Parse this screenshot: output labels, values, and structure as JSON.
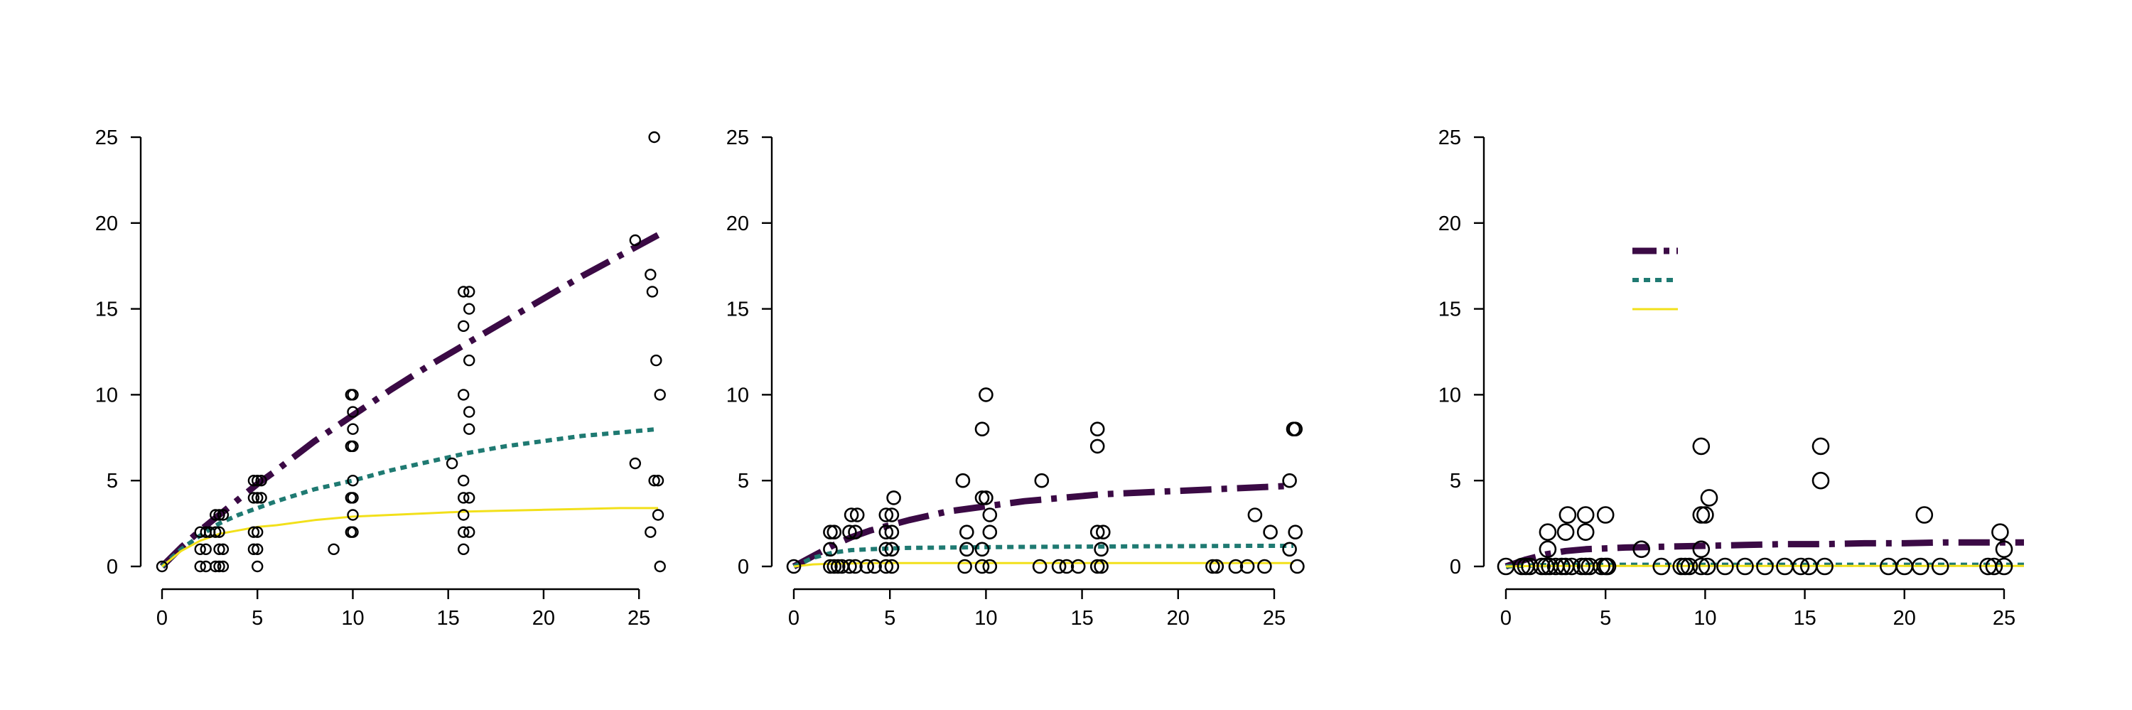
{
  "colors": {
    "dark": "#3b0a45",
    "teal": "#1f7a72",
    "yellow": "#f2e01a",
    "axis": "#000000"
  },
  "chart_data": [
    {
      "type": "scatter",
      "title": "",
      "xlabel": "",
      "ylabel": "",
      "xlim": [
        0,
        26
      ],
      "ylim": [
        0,
        25
      ],
      "xticks": [
        0,
        5,
        10,
        15,
        20,
        25
      ],
      "yticks": [
        0,
        5,
        10,
        15,
        20,
        25
      ],
      "grid": false,
      "points": [
        [
          0,
          0
        ],
        [
          2,
          0
        ],
        [
          2,
          1
        ],
        [
          2,
          2
        ],
        [
          2.3,
          0
        ],
        [
          2.3,
          1
        ],
        [
          2.3,
          2
        ],
        [
          2.5,
          2
        ],
        [
          2.8,
          0
        ],
        [
          2.8,
          2
        ],
        [
          2.8,
          3
        ],
        [
          3,
          0
        ],
        [
          3,
          1
        ],
        [
          3,
          2
        ],
        [
          3,
          3
        ],
        [
          3.2,
          0
        ],
        [
          3.2,
          1
        ],
        [
          3.2,
          3
        ],
        [
          5,
          0
        ],
        [
          5,
          1
        ],
        [
          5,
          2
        ],
        [
          5,
          4
        ],
        [
          5,
          5
        ],
        [
          4.8,
          1
        ],
        [
          4.8,
          2
        ],
        [
          4.8,
          4
        ],
        [
          4.8,
          5
        ],
        [
          5.2,
          4
        ],
        [
          5.2,
          5
        ],
        [
          9,
          1
        ],
        [
          10,
          2
        ],
        [
          10,
          3
        ],
        [
          10,
          4
        ],
        [
          10,
          5
        ],
        [
          10,
          7
        ],
        [
          10,
          8
        ],
        [
          10,
          9
        ],
        [
          10,
          10
        ],
        [
          9.9,
          2
        ],
        [
          9.9,
          4
        ],
        [
          9.9,
          7
        ],
        [
          9.9,
          10
        ],
        [
          15.2,
          6
        ],
        [
          15.8,
          1
        ],
        [
          15.8,
          2
        ],
        [
          15.8,
          3
        ],
        [
          15.8,
          4
        ],
        [
          15.8,
          5
        ],
        [
          15.8,
          10
        ],
        [
          15.8,
          14
        ],
        [
          15.8,
          16
        ],
        [
          16.1,
          2
        ],
        [
          16.1,
          4
        ],
        [
          16.1,
          8
        ],
        [
          16.1,
          9
        ],
        [
          16.1,
          12
        ],
        [
          16.1,
          15
        ],
        [
          16.1,
          16
        ],
        [
          24.8,
          6
        ],
        [
          24.8,
          19
        ],
        [
          25.6,
          2
        ],
        [
          25.6,
          17
        ],
        [
          25.7,
          16
        ],
        [
          25.8,
          25
        ],
        [
          25.8,
          5
        ],
        [
          25.9,
          12
        ],
        [
          26,
          3
        ],
        [
          26,
          5
        ],
        [
          26.1,
          0
        ],
        [
          26.1,
          10
        ]
      ],
      "series": [
        {
          "style": "dashdot",
          "color": "dark",
          "x": [
            0,
            1,
            2,
            3,
            4,
            5,
            6,
            8,
            10,
            12,
            14,
            16,
            18,
            20,
            22,
            24,
            26
          ],
          "y": [
            0,
            1.1,
            2.1,
            3.0,
            3.9,
            4.8,
            5.6,
            7.3,
            8.8,
            10.3,
            11.7,
            13.0,
            14.3,
            15.6,
            16.9,
            18.1,
            19.3
          ]
        },
        {
          "style": "dotted",
          "color": "teal",
          "x": [
            0,
            1,
            2,
            3,
            4,
            5,
            6,
            8,
            10,
            12,
            14,
            16,
            18,
            20,
            22,
            24,
            26
          ],
          "y": [
            0,
            1.0,
            1.8,
            2.5,
            3.0,
            3.4,
            3.8,
            4.5,
            5.0,
            5.6,
            6.1,
            6.6,
            7.0,
            7.3,
            7.6,
            7.8,
            8.0
          ]
        },
        {
          "style": "solid",
          "color": "yellow",
          "x": [
            0,
            1,
            2,
            3,
            4,
            5,
            6,
            8,
            10,
            12,
            14,
            16,
            18,
            20,
            22,
            24,
            26
          ],
          "y": [
            0,
            0.9,
            1.5,
            1.9,
            2.1,
            2.3,
            2.4,
            2.7,
            2.9,
            3.0,
            3.1,
            3.2,
            3.25,
            3.3,
            3.35,
            3.4,
            3.4
          ]
        }
      ]
    },
    {
      "type": "scatter",
      "title": "",
      "xlabel": "",
      "ylabel": "",
      "xlim": [
        0,
        26
      ],
      "ylim": [
        0,
        25
      ],
      "xticks": [
        0,
        5,
        10,
        15,
        20,
        25
      ],
      "yticks": [
        0,
        5,
        10,
        15,
        20,
        25
      ],
      "grid": false,
      "points": [
        [
          0,
          0
        ],
        [
          1.9,
          0
        ],
        [
          1.9,
          1
        ],
        [
          1.9,
          2
        ],
        [
          2.1,
          0
        ],
        [
          2.1,
          2
        ],
        [
          2.3,
          0
        ],
        [
          2.5,
          0
        ],
        [
          2.9,
          0
        ],
        [
          2.9,
          2
        ],
        [
          3,
          3
        ],
        [
          3.2,
          0
        ],
        [
          3.2,
          2
        ],
        [
          3.3,
          3
        ],
        [
          3.8,
          0
        ],
        [
          4.2,
          0
        ],
        [
          4.8,
          0
        ],
        [
          4.8,
          1
        ],
        [
          4.8,
          2
        ],
        [
          4.8,
          3
        ],
        [
          5.1,
          0
        ],
        [
          5.1,
          1
        ],
        [
          5.1,
          2
        ],
        [
          5.1,
          3
        ],
        [
          5.2,
          4
        ],
        [
          8.8,
          5
        ],
        [
          8.9,
          0
        ],
        [
          9,
          1
        ],
        [
          9,
          2
        ],
        [
          9.8,
          0
        ],
        [
          9.8,
          1
        ],
        [
          9.8,
          4
        ],
        [
          9.8,
          8
        ],
        [
          10,
          10
        ],
        [
          10,
          4
        ],
        [
          10.2,
          0
        ],
        [
          10.2,
          2
        ],
        [
          10.2,
          3
        ],
        [
          12.8,
          0
        ],
        [
          12.9,
          5
        ],
        [
          13.8,
          0
        ],
        [
          14.2,
          0
        ],
        [
          14.8,
          0
        ],
        [
          15.8,
          0
        ],
        [
          15.8,
          2
        ],
        [
          15.8,
          7
        ],
        [
          15.8,
          8
        ],
        [
          16,
          0
        ],
        [
          16,
          1
        ],
        [
          16.1,
          2
        ],
        [
          21.8,
          0
        ],
        [
          22,
          0
        ],
        [
          23,
          0
        ],
        [
          23.6,
          0
        ],
        [
          24,
          3
        ],
        [
          24.5,
          0
        ],
        [
          24.8,
          2
        ],
        [
          25.8,
          1
        ],
        [
          25.8,
          5
        ],
        [
          26,
          8
        ],
        [
          26.1,
          8
        ],
        [
          26.1,
          2
        ],
        [
          26.2,
          0
        ]
      ],
      "series": [
        {
          "style": "dashdot",
          "color": "dark",
          "x": [
            0,
            1,
            2,
            3,
            4,
            5,
            6,
            8,
            10,
            12,
            14,
            16,
            18,
            20,
            22,
            24,
            26
          ],
          "y": [
            0,
            0.6,
            1.2,
            1.7,
            2.1,
            2.4,
            2.7,
            3.2,
            3.5,
            3.8,
            4.0,
            4.2,
            4.3,
            4.4,
            4.5,
            4.6,
            4.7
          ]
        },
        {
          "style": "dotted",
          "color": "teal",
          "x": [
            0,
            1,
            2,
            3,
            4,
            5,
            6,
            8,
            10,
            12,
            14,
            16,
            18,
            20,
            22,
            24,
            26
          ],
          "y": [
            0,
            0.5,
            0.8,
            0.95,
            1.0,
            1.05,
            1.08,
            1.1,
            1.12,
            1.14,
            1.15,
            1.16,
            1.17,
            1.18,
            1.19,
            1.2,
            1.2
          ]
        },
        {
          "style": "solid",
          "color": "yellow",
          "x": [
            0,
            1,
            2,
            3,
            4,
            5,
            6,
            8,
            10,
            12,
            14,
            16,
            18,
            20,
            22,
            24,
            26
          ],
          "y": [
            0,
            0.12,
            0.16,
            0.18,
            0.19,
            0.2,
            0.2,
            0.2,
            0.2,
            0.2,
            0.2,
            0.2,
            0.2,
            0.2,
            0.2,
            0.2,
            0.2
          ]
        }
      ]
    },
    {
      "type": "scatter",
      "title": "",
      "xlabel": "",
      "ylabel": "",
      "xlim": [
        0,
        26
      ],
      "ylim": [
        0,
        25
      ],
      "xticks": [
        0,
        5,
        10,
        15,
        20,
        25
      ],
      "yticks": [
        0,
        5,
        10,
        15,
        20,
        25
      ],
      "grid": false,
      "legend": {
        "placement": "top-left",
        "entries": [
          {
            "style": "dashdot",
            "color": "dark"
          },
          {
            "style": "dotted",
            "color": "teal"
          },
          {
            "style": "solid",
            "color": "yellow"
          }
        ]
      },
      "points": [
        [
          0,
          0
        ],
        [
          0.8,
          0
        ],
        [
          1,
          0
        ],
        [
          1.2,
          0
        ],
        [
          1.8,
          0
        ],
        [
          2,
          0
        ],
        [
          2.1,
          1
        ],
        [
          2.1,
          2
        ],
        [
          2.2,
          0
        ],
        [
          2.5,
          0
        ],
        [
          2.8,
          0
        ],
        [
          3,
          0
        ],
        [
          3,
          2
        ],
        [
          3.1,
          3
        ],
        [
          3.3,
          0
        ],
        [
          3.8,
          0
        ],
        [
          4,
          0
        ],
        [
          4,
          2
        ],
        [
          4,
          3
        ],
        [
          4.2,
          0
        ],
        [
          4.8,
          0
        ],
        [
          5,
          0
        ],
        [
          5,
          3
        ],
        [
          5.1,
          0
        ],
        [
          6.8,
          1
        ],
        [
          7.8,
          0
        ],
        [
          8.8,
          0
        ],
        [
          9,
          0
        ],
        [
          9.2,
          0
        ],
        [
          9.8,
          0
        ],
        [
          9.8,
          1
        ],
        [
          9.8,
          3
        ],
        [
          9.8,
          7
        ],
        [
          10,
          3
        ],
        [
          10.1,
          0
        ],
        [
          10.2,
          4
        ],
        [
          11,
          0
        ],
        [
          12,
          0
        ],
        [
          13,
          0
        ],
        [
          14,
          0
        ],
        [
          14.8,
          0
        ],
        [
          15.2,
          0
        ],
        [
          15.8,
          5
        ],
        [
          15.8,
          7
        ],
        [
          16,
          0
        ],
        [
          19.2,
          0
        ],
        [
          20,
          0
        ],
        [
          20.8,
          0
        ],
        [
          21,
          3
        ],
        [
          21.8,
          0
        ],
        [
          24.2,
          0
        ],
        [
          24.5,
          0
        ],
        [
          24.8,
          2
        ],
        [
          25,
          0
        ],
        [
          25,
          1
        ]
      ],
      "series": [
        {
          "style": "dashdot",
          "color": "dark",
          "x": [
            0,
            1,
            2,
            3,
            4,
            5,
            6,
            8,
            10,
            12,
            14,
            16,
            18,
            20,
            22,
            24,
            26
          ],
          "y": [
            0,
            0.4,
            0.7,
            0.9,
            1.0,
            1.05,
            1.1,
            1.15,
            1.2,
            1.25,
            1.3,
            1.3,
            1.35,
            1.35,
            1.4,
            1.4,
            1.4
          ]
        },
        {
          "style": "dotted",
          "color": "teal",
          "x": [
            0,
            1,
            2,
            3,
            4,
            5,
            6,
            8,
            10,
            12,
            14,
            16,
            18,
            20,
            22,
            24,
            26
          ],
          "y": [
            0,
            0.05,
            0.08,
            0.1,
            0.1,
            0.1,
            0.1,
            0.1,
            0.1,
            0.1,
            0.1,
            0.1,
            0.1,
            0.1,
            0.1,
            0.1,
            0.1
          ]
        },
        {
          "style": "solid",
          "color": "yellow",
          "x": [
            0,
            1,
            2,
            3,
            4,
            5,
            6,
            8,
            10,
            12,
            14,
            16,
            18,
            20,
            22,
            24,
            26
          ],
          "y": [
            0,
            0.02,
            0.03,
            0.03,
            0.03,
            0.03,
            0.03,
            0.03,
            0.03,
            0.03,
            0.03,
            0.03,
            0.03,
            0.03,
            0.03,
            0.03,
            0.03
          ]
        }
      ]
    }
  ]
}
